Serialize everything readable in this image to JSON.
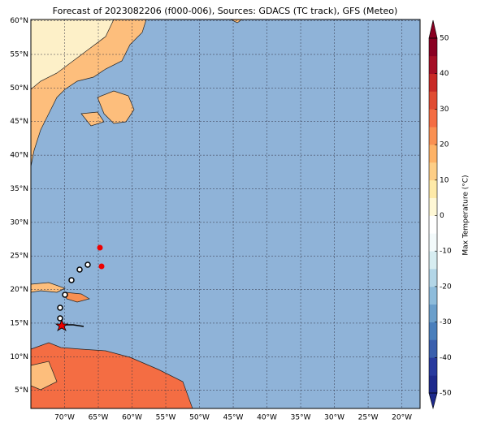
{
  "title": "Forecast of 2023082206 (f000-006), Sources: GDACS (TC track), GFS (Meteo)",
  "map": {
    "xlim": [
      -75,
      -17.3
    ],
    "ylim": [
      2.3,
      60.2
    ],
    "lat_ticks": [
      {
        "value": 60,
        "label": "60°N"
      },
      {
        "value": 55,
        "label": "55°N"
      },
      {
        "value": 50,
        "label": "50°N"
      },
      {
        "value": 45,
        "label": "45°N"
      },
      {
        "value": 40,
        "label": "40°N"
      },
      {
        "value": 35,
        "label": "35°N"
      },
      {
        "value": 30,
        "label": "30°N"
      },
      {
        "value": 25,
        "label": "25°N"
      },
      {
        "value": 20,
        "label": "20°N"
      },
      {
        "value": 15,
        "label": "15°N"
      },
      {
        "value": 10,
        "label": "10°N"
      },
      {
        "value": 5,
        "label": "5°N"
      }
    ],
    "lon_ticks": [
      {
        "value": -70,
        "label": "70°W"
      },
      {
        "value": -65,
        "label": "65°W"
      },
      {
        "value": -60,
        "label": "60°W"
      },
      {
        "value": -55,
        "label": "55°W"
      },
      {
        "value": -50,
        "label": "50°W"
      },
      {
        "value": -45,
        "label": "45°W"
      },
      {
        "value": -40,
        "label": "40°W"
      },
      {
        "value": -35,
        "label": "35°W"
      },
      {
        "value": -30,
        "label": "30°W"
      },
      {
        "value": -25,
        "label": "25°W"
      },
      {
        "value": -20,
        "label": "20°W"
      }
    ]
  },
  "colorbar": {
    "label": "Max Temperature (°C)",
    "lim": [
      -50,
      50
    ],
    "ticks": [
      50,
      40,
      30,
      20,
      10,
      0,
      -10,
      -20,
      -30,
      -40,
      -50
    ],
    "colors": [
      "#1e2a8c",
      "#283a9e",
      "#3a5fad",
      "#4a7fbc",
      "#6b9fcb",
      "#8ebcdb",
      "#b3d6e7",
      "#d7edf1",
      "#f3fafb",
      "#ffffff",
      "#fff8d6",
      "#feeaa8",
      "#fdce86",
      "#fdb266",
      "#f99052",
      "#f46d43",
      "#e04c32",
      "#c82a26",
      "#a50f26",
      "#8a0022"
    ]
  }
}
